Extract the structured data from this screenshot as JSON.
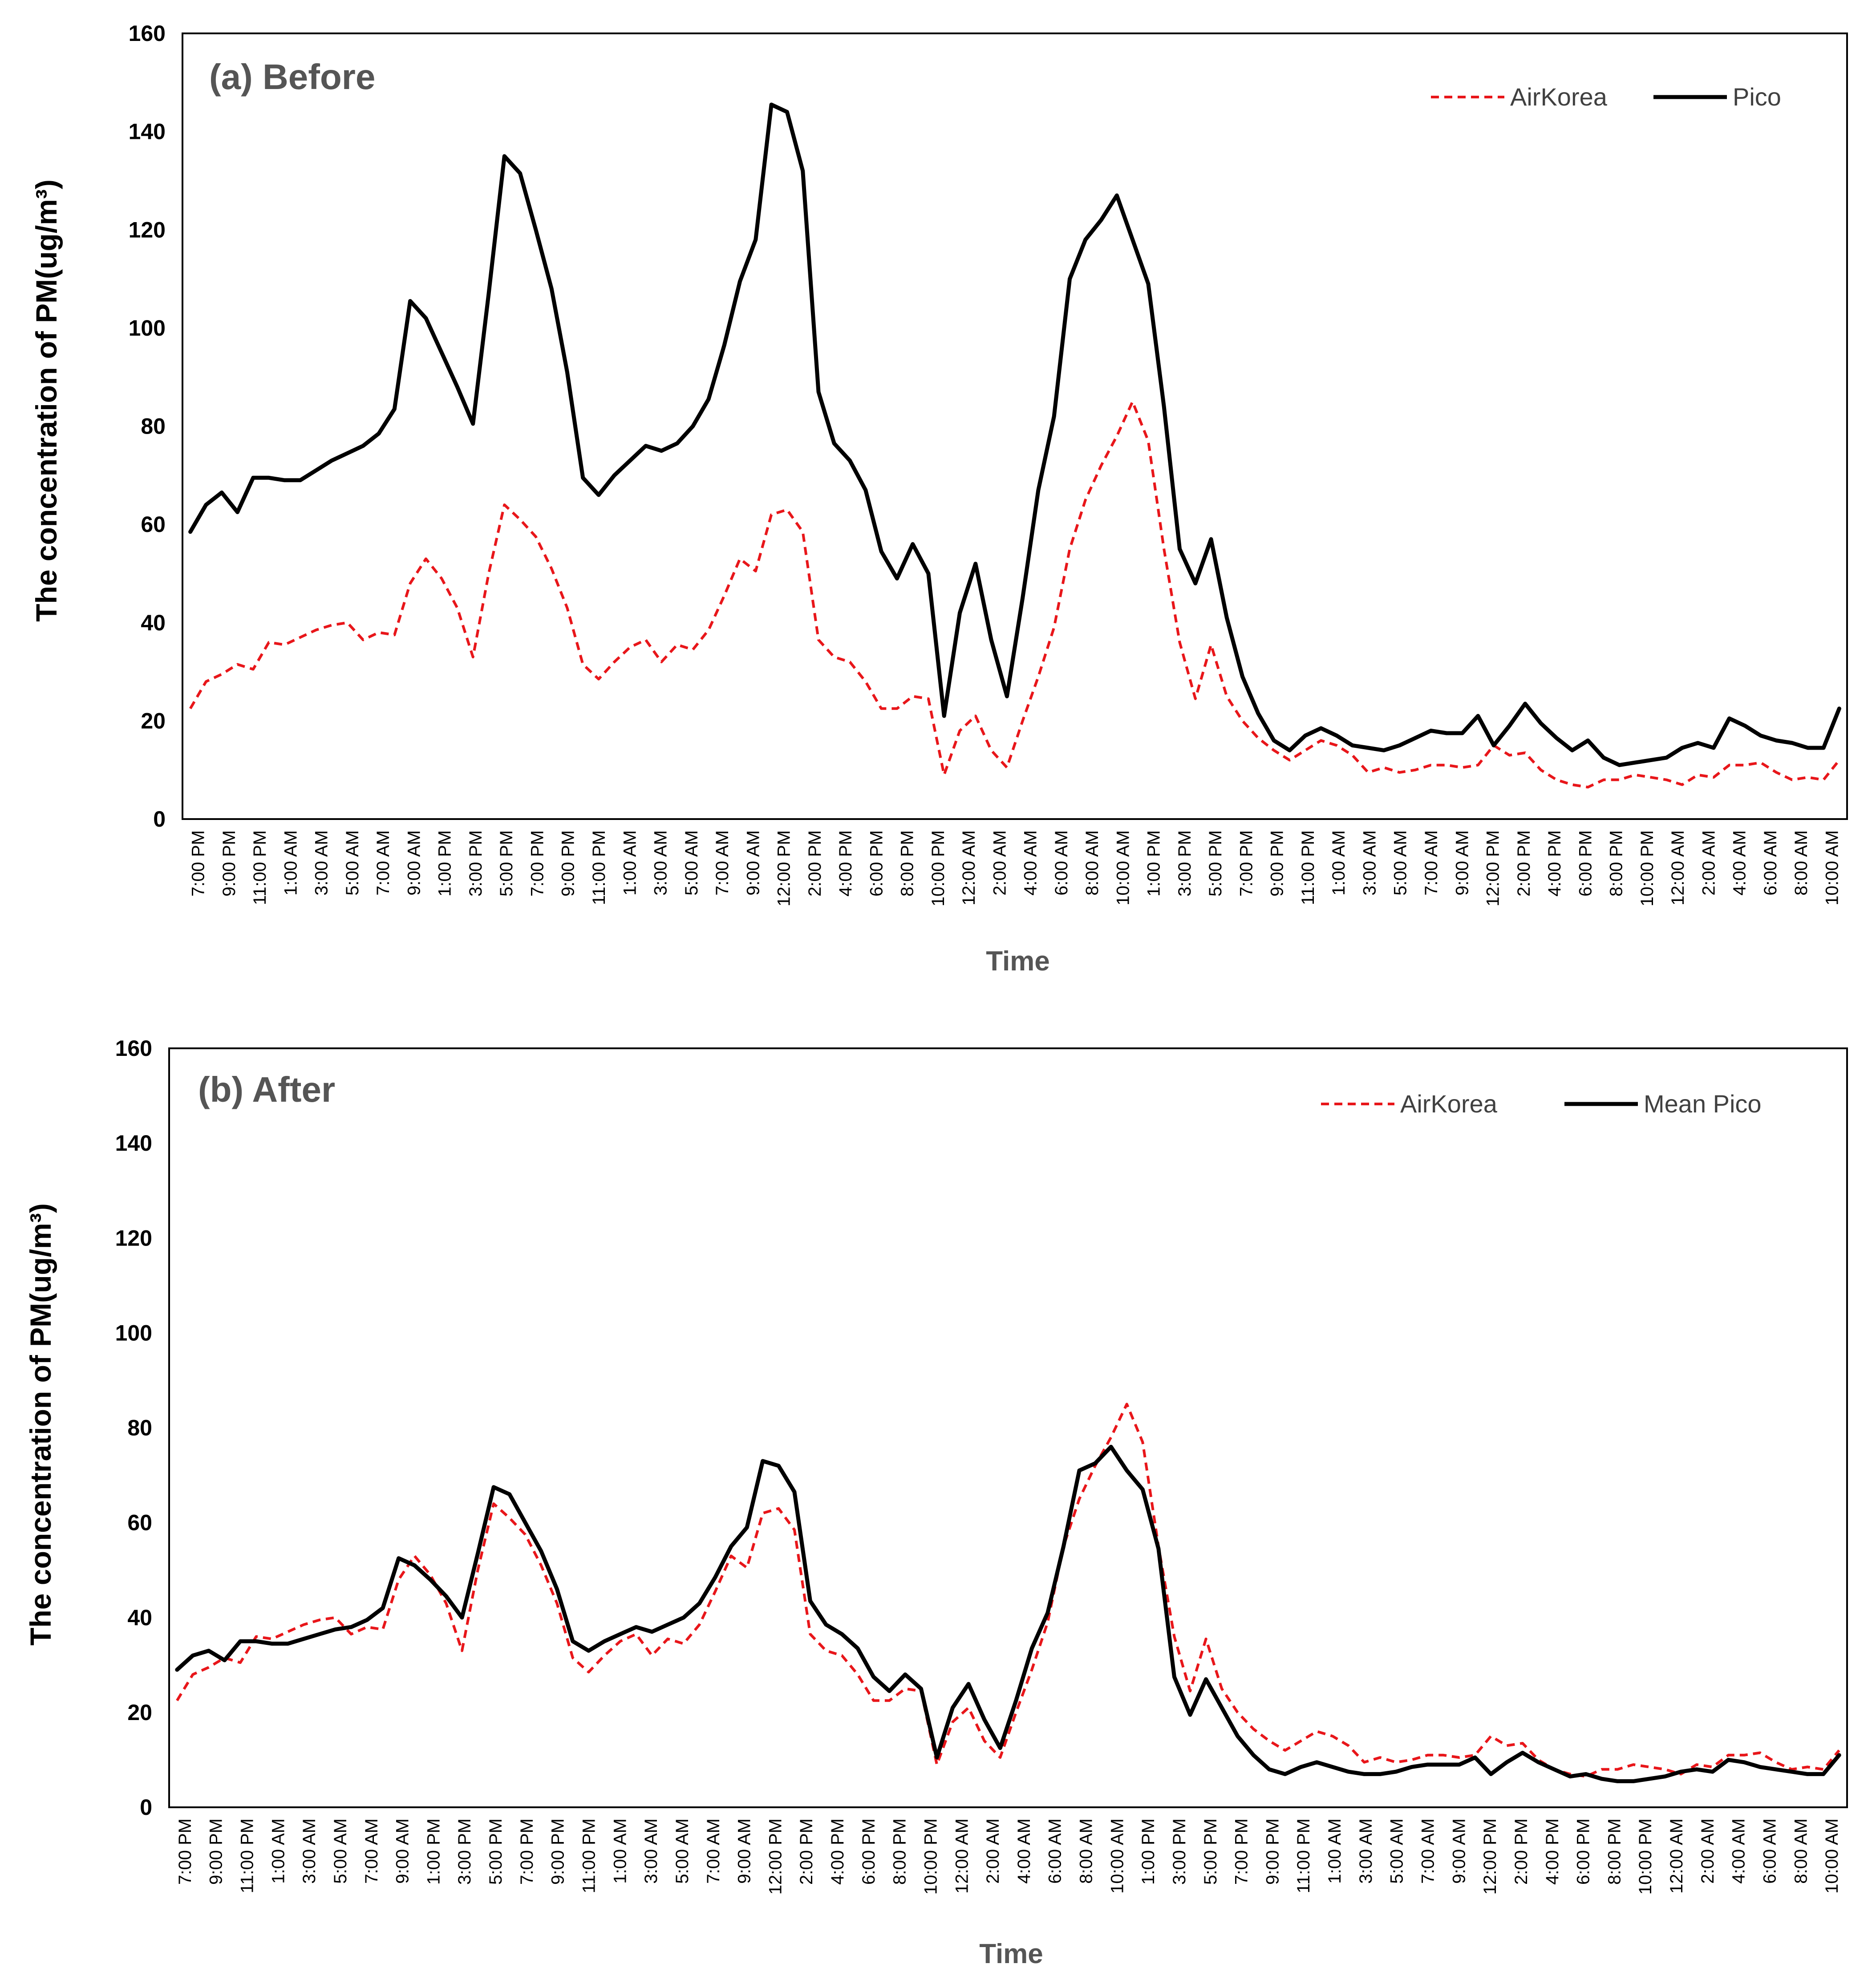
{
  "chart_data": [
    {
      "type": "line",
      "panel_label": "(a) Before",
      "xlabel": "Time",
      "ylabel": "The concentration of PM(ug/m³)",
      "ylim": [
        0,
        160
      ],
      "yticks": [
        "0",
        "20",
        "40",
        "60",
        "80",
        "100",
        "120",
        "140",
        "160"
      ],
      "xtick_labels": [
        "7:00 PM",
        "9:00 PM",
        "11:00 PM",
        "1:00 AM",
        "3:00 AM",
        "5:00 AM",
        "7:00 AM",
        "9:00 AM",
        "1:00 PM",
        "3:00 PM",
        "5:00 PM",
        "7:00 PM",
        "9:00 PM",
        "11:00 PM",
        "1:00 AM",
        "3:00 AM",
        "5:00 AM",
        "7:00 AM",
        "9:00 AM",
        "12:00 PM",
        "2:00 PM",
        "4:00 PM",
        "6:00 PM",
        "8:00 PM",
        "10:00 PM",
        "12:00 AM",
        "2:00 AM",
        "4:00 AM",
        "6:00 AM",
        "8:00 AM",
        "10:00 AM",
        "1:00 PM",
        "3:00 PM",
        "5:00 PM",
        "7:00 PM",
        "9:00 PM",
        "11:00 PM",
        "1:00 AM",
        "3:00 AM",
        "5:00 AM",
        "7:00 AM",
        "9:00 AM",
        "12:00 PM",
        "2:00 PM",
        "4:00 PM",
        "6:00 PM",
        "8:00 PM",
        "10:00 PM",
        "12:00 AM",
        "2:00 AM",
        "4:00 AM",
        "6:00 AM",
        "8:00 AM",
        "10:00 AM"
      ],
      "legend_position": "top-right",
      "grid": false,
      "series": [
        {
          "name": "AirKorea",
          "color": "#e8161a",
          "style": "dashed",
          "values": [
            22.5,
            28,
            29.5,
            31.5,
            30.5,
            36,
            35.5,
            37,
            38.5,
            39.5,
            40,
            36.5,
            38,
            37.5,
            48,
            53,
            49,
            43,
            33,
            50,
            64,
            61,
            57.5,
            51,
            43,
            31.5,
            28.5,
            32,
            35,
            36.5,
            32,
            35.5,
            34.5,
            38.5,
            45.5,
            53,
            50.5,
            62,
            63,
            58.5,
            36.5,
            33,
            32,
            28,
            22.5,
            22.5,
            25,
            24.5,
            9,
            18,
            21,
            14,
            10.5,
            20,
            29,
            39,
            55,
            65,
            72,
            78,
            85,
            77,
            55,
            36,
            24.5,
            35.5,
            25,
            20,
            16.5,
            14,
            12,
            14,
            16,
            15,
            13,
            9.5,
            10.5,
            9.5,
            10,
            11,
            11,
            10.5,
            11,
            15,
            13,
            13.5,
            10,
            8,
            7,
            6.5,
            8,
            8,
            9,
            8.5,
            8,
            7,
            9,
            8.5,
            11,
            11,
            11.5,
            9.5,
            8,
            8.5,
            8,
            12
          ]
        },
        {
          "name": "Pico",
          "color": "#000000",
          "style": "solid",
          "values": [
            58.5,
            64,
            66.5,
            62.5,
            69.5,
            69.5,
            69,
            69,
            71,
            73,
            74.5,
            76,
            78.5,
            83.5,
            105.5,
            102,
            95,
            88,
            80.5,
            107,
            135,
            131.5,
            120,
            108,
            91,
            69.5,
            66,
            70,
            73,
            76,
            75,
            76.5,
            80,
            85.5,
            96.5,
            109.5,
            118,
            145.5,
            144,
            132,
            87,
            76.5,
            73,
            67,
            54.5,
            49,
            56,
            50,
            21,
            42,
            52,
            36.5,
            25,
            45,
            67,
            82,
            110,
            118,
            122,
            127,
            118,
            109,
            84,
            55,
            48,
            57,
            41,
            29,
            21.5,
            16,
            14,
            17,
            18.5,
            17,
            15,
            14.5,
            14,
            15,
            16.5,
            18,
            17.5,
            17.5,
            21,
            15,
            19,
            23.5,
            19.5,
            16.5,
            14,
            16,
            12.5,
            11,
            11.5,
            12,
            12.5,
            14.5,
            15.5,
            14.5,
            20.5,
            19,
            17,
            16,
            15.5,
            14.5,
            14.5,
            22.5
          ]
        }
      ]
    },
    {
      "type": "line",
      "panel_label": "(b) After",
      "xlabel": "Time",
      "ylabel": "The concentration of PM(ug/m³)",
      "ylim": [
        0,
        160
      ],
      "yticks": [
        "0",
        "20",
        "40",
        "60",
        "80",
        "100",
        "120",
        "140",
        "160"
      ],
      "xtick_labels": [
        "7:00 PM",
        "9:00 PM",
        "11:00 PM",
        "1:00 AM",
        "3:00 AM",
        "5:00 AM",
        "7:00 AM",
        "9:00 AM",
        "1:00 PM",
        "3:00 PM",
        "5:00 PM",
        "7:00 PM",
        "9:00 PM",
        "11:00 PM",
        "1:00 AM",
        "3:00 AM",
        "5:00 AM",
        "7:00 AM",
        "9:00 AM",
        "12:00 PM",
        "2:00 PM",
        "4:00 PM",
        "6:00 PM",
        "8:00 PM",
        "10:00 PM",
        "12:00 AM",
        "2:00 AM",
        "4:00 AM",
        "6:00 AM",
        "8:00 AM",
        "10:00 AM",
        "1:00 PM",
        "3:00 PM",
        "5:00 PM",
        "7:00 PM",
        "9:00 PM",
        "11:00 PM",
        "1:00 AM",
        "3:00 AM",
        "5:00 AM",
        "7:00 AM",
        "9:00 AM",
        "12:00 PM",
        "2:00 PM",
        "4:00 PM",
        "6:00 PM",
        "8:00 PM",
        "10:00 PM",
        "12:00 AM",
        "2:00 AM",
        "4:00 AM",
        "6:00 AM",
        "8:00 AM",
        "10:00 AM"
      ],
      "legend_position": "top-right",
      "grid": false,
      "series": [
        {
          "name": "AirKorea",
          "color": "#e8161a",
          "style": "dashed",
          "values": [
            22.5,
            28,
            29.5,
            31.5,
            30.5,
            36,
            35.5,
            37,
            38.5,
            39.5,
            40,
            36.5,
            38,
            37.5,
            48,
            53,
            49,
            43,
            33,
            50,
            64,
            61,
            57.5,
            51,
            43,
            31.5,
            28.5,
            32,
            35,
            36.5,
            32,
            35.5,
            34.5,
            38.5,
            45.5,
            53,
            50.5,
            62,
            63,
            58.5,
            36.5,
            33,
            32,
            28,
            22.5,
            22.5,
            25,
            24.5,
            9,
            18,
            21,
            14,
            10.5,
            20,
            29,
            39,
            55,
            65,
            72,
            78,
            85,
            77,
            55,
            36,
            24.5,
            35.5,
            25,
            20,
            16.5,
            14,
            12,
            14,
            16,
            15,
            13,
            9.5,
            10.5,
            9.5,
            10,
            11,
            11,
            10.5,
            11,
            15,
            13,
            13.5,
            10,
            8,
            7,
            6.5,
            8,
            8,
            9,
            8.5,
            8,
            7,
            9,
            8.5,
            11,
            11,
            11.5,
            9.5,
            8,
            8.5,
            8,
            12
          ]
        },
        {
          "name": "Mean Pico",
          "color": "#000000",
          "style": "solid",
          "values": [
            29,
            32,
            33,
            31,
            35,
            35,
            34.5,
            34.5,
            35.5,
            36.5,
            37.5,
            38,
            39.5,
            42,
            52.5,
            51,
            48,
            44.5,
            40,
            53.5,
            67.5,
            66,
            60,
            54,
            46,
            35,
            33,
            35,
            36.5,
            38,
            37,
            38.5,
            40,
            43,
            48.5,
            55,
            59,
            73,
            72,
            66.5,
            43.5,
            38.5,
            36.5,
            33.5,
            27.5,
            24.5,
            28,
            25,
            10.5,
            21,
            26,
            18.5,
            12.5,
            22.5,
            33.5,
            41,
            55,
            71,
            72.5,
            76,
            71,
            67,
            54.5,
            27.5,
            19.5,
            27,
            21,
            15,
            11,
            8,
            7,
            8.5,
            9.5,
            8.5,
            7.5,
            7,
            7,
            7.5,
            8.5,
            9,
            9,
            9,
            10.5,
            7,
            9.5,
            11.5,
            9.5,
            8,
            6.5,
            7,
            6,
            5.5,
            5.5,
            6,
            6.5,
            7.5,
            8,
            7.5,
            10,
            9.5,
            8.5,
            8,
            7.5,
            7,
            7,
            11
          ]
        }
      ]
    }
  ]
}
